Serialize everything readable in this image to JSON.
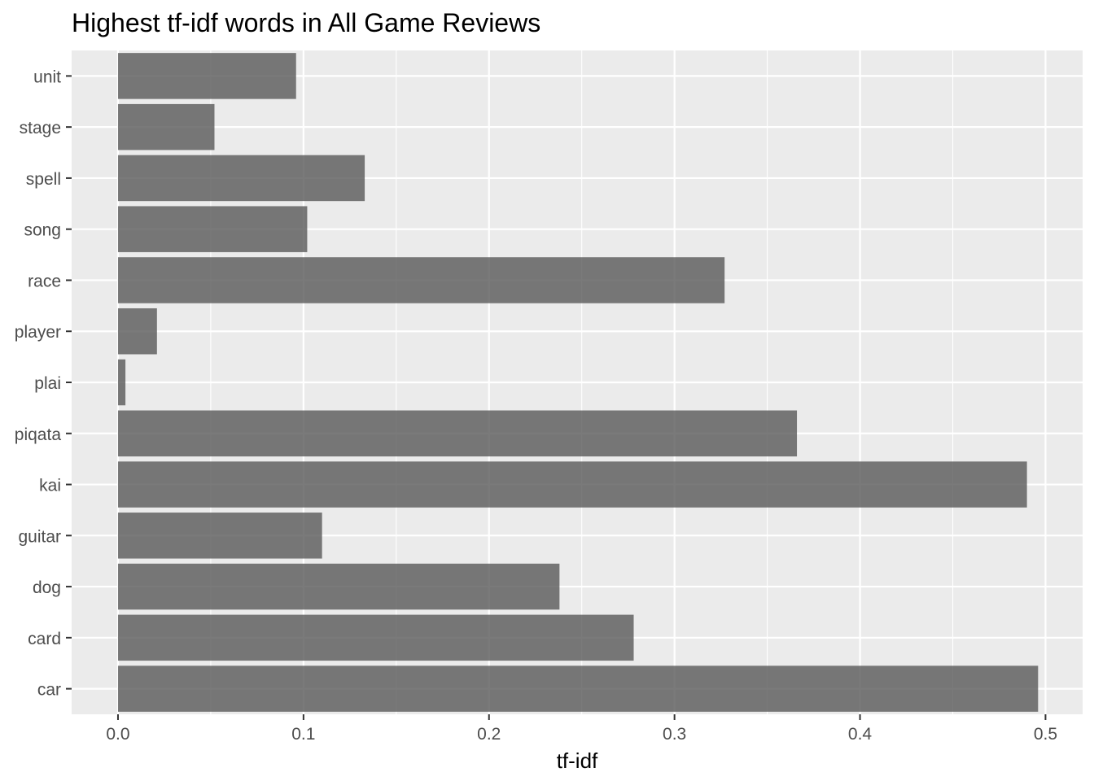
{
  "chart_data": {
    "type": "bar",
    "orientation": "horizontal",
    "title": "Highest tf-idf words in All Game Reviews",
    "xlabel": "tf-idf",
    "ylabel": "",
    "categories": [
      "unit",
      "stage",
      "spell",
      "song",
      "race",
      "player",
      "plai",
      "piqata",
      "kai",
      "guitar",
      "dog",
      "card",
      "car"
    ],
    "values": [
      0.096,
      0.052,
      0.133,
      0.102,
      0.327,
      0.021,
      0.004,
      0.366,
      0.49,
      0.11,
      0.238,
      0.278,
      0.496
    ],
    "xlim": [
      -0.025,
      0.52
    ],
    "xticks": [
      0.0,
      0.1,
      0.2,
      0.3,
      0.4,
      0.5
    ],
    "xtick_labels": [
      "0.0",
      "0.1",
      "0.2",
      "0.3",
      "0.4",
      "0.5"
    ],
    "grid": true,
    "colors": {
      "panel_background": "#ebebeb",
      "grid_major": "#ffffff",
      "bar_fill": "#595959",
      "bar_opacity": 0.8,
      "axis_text": "#4d4d4d",
      "tick_mark": "#333333"
    }
  }
}
